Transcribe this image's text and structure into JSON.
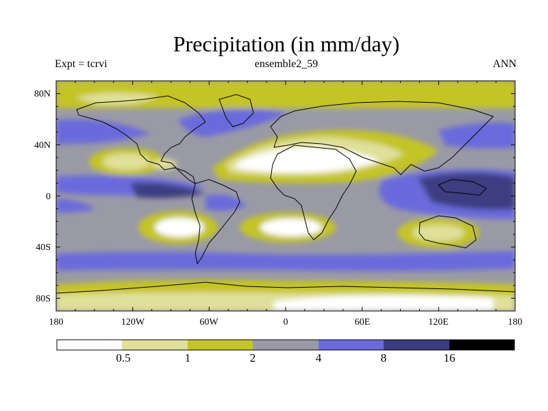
{
  "title": "Precipitation (in mm/day)",
  "subtitle_left": "Expt = tcrvi",
  "subtitle_center": "ensemble2_59",
  "subtitle_right": "ANN",
  "axes": {
    "lon_ticks": [
      "180",
      "120W",
      "60W",
      "0",
      "60E",
      "120E",
      "180"
    ],
    "lat_ticks": [
      "80N",
      "40N",
      "0",
      "40S",
      "80S"
    ]
  },
  "colorbar": {
    "labels": [
      "0.5",
      "1",
      "2",
      "4",
      "8",
      "16"
    ],
    "colors": [
      "#ffffff",
      "#e0e09a",
      "#c4c428",
      "#9a9aa6",
      "#6b6bdc",
      "#3c3c82",
      "#000000"
    ]
  },
  "chart_data": {
    "type": "heatmap",
    "title": "Precipitation (in mm/day)",
    "projection": "cylindrical equidistant",
    "lon_range": [
      -180,
      180
    ],
    "lat_range": [
      -90,
      90
    ],
    "levels": [
      0.5,
      1,
      2,
      4,
      8,
      16
    ],
    "colors": [
      "#ffffff",
      "#e0e09a",
      "#c4c428",
      "#9a9aa6",
      "#6b6bdc",
      "#3c3c82",
      "#000000"
    ],
    "background_level": 4,
    "regions": [
      {
        "name": "arctic-north",
        "level": 2,
        "lon": [
          -180,
          180
        ],
        "lat": [
          70,
          90
        ]
      },
      {
        "name": "arctic-east",
        "level": 1,
        "lon": [
          -135,
          -80
        ],
        "lat": [
          76,
          86
        ]
      },
      {
        "name": "north-atlantic-storm-track",
        "level": 8,
        "lon": [
          -70,
          20
        ],
        "lat": [
          42,
          62
        ]
      },
      {
        "name": "north-pacific-storm-track",
        "level": 8,
        "lon": [
          130,
          180
        ],
        "lat": [
          35,
          55
        ]
      },
      {
        "name": "sahara-arabia-desert",
        "level": 0,
        "lon": [
          -15,
          55
        ],
        "lat": [
          15,
          33
        ]
      },
      {
        "name": "sahel-arid-belt",
        "level": 1,
        "lon": [
          -25,
          75
        ],
        "lat": [
          10,
          42
        ]
      },
      {
        "name": "east-pacific-subtropical-high",
        "level": 1,
        "lon": [
          -155,
          -115
        ],
        "lat": [
          17,
          33
        ]
      },
      {
        "name": "itcz-pacific",
        "level": 8,
        "lon": [
          -180,
          -80
        ],
        "lat": [
          3,
          13
        ]
      },
      {
        "name": "warm-pool",
        "level": 16,
        "lon": [
          95,
          180
        ],
        "lat": [
          -10,
          10
        ]
      },
      {
        "name": "south-east-pacific-dry",
        "level": 0,
        "lon": [
          -115,
          -75
        ],
        "lat": [
          -30,
          -15
        ]
      },
      {
        "name": "south-atlantic-dry",
        "level": 0,
        "lon": [
          -20,
          20
        ],
        "lat": [
          -30,
          -13
        ]
      },
      {
        "name": "australia-dry",
        "level": 1,
        "lon": [
          110,
          155
        ],
        "lat": [
          -35,
          -15
        ]
      },
      {
        "name": "southern-ocean-storm-track",
        "level": 8,
        "lon": [
          -180,
          180
        ],
        "lat": [
          -60,
          -45
        ]
      },
      {
        "name": "antarctica-coast",
        "level": 2,
        "lon": [
          -180,
          180
        ],
        "lat": [
          -90,
          -68
        ]
      },
      {
        "name": "antarctica-interior",
        "level": 0,
        "lon": [
          -10,
          120
        ],
        "lat": [
          -90,
          -80
        ]
      }
    ]
  }
}
